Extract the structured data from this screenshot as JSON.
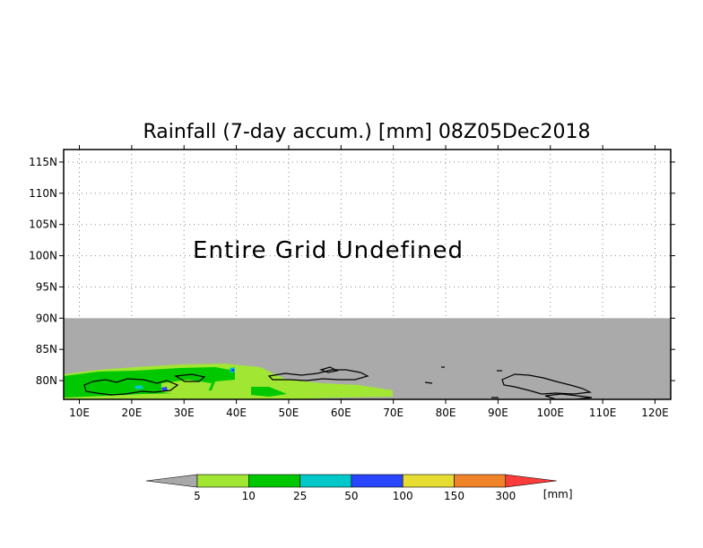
{
  "title": "Rainfall (7-day accum.) [mm] 08Z05Dec2018",
  "message": "Entire Grid Undefined",
  "map": {
    "lon_range": [
      7,
      123
    ],
    "lat_range": [
      77,
      117
    ],
    "lon_ticks": [
      10,
      20,
      30,
      40,
      50,
      60,
      70,
      80,
      90,
      100,
      110,
      120
    ],
    "lon_tick_labels": [
      "10E",
      "20E",
      "30E",
      "40E",
      "50E",
      "60E",
      "70E",
      "80E",
      "90E",
      "100E",
      "110E",
      "120E"
    ],
    "lat_ticks": [
      80,
      85,
      90,
      95,
      100,
      105,
      110,
      115
    ],
    "lat_tick_labels": [
      "80N",
      "85N",
      "90N",
      "95N",
      "100N",
      "105N",
      "110N",
      "115N"
    ],
    "undefined_region": {
      "lat_max": 90,
      "color": "#aaaaaa"
    },
    "grid": "dotted"
  },
  "legend": {
    "unit_label": "[mm]",
    "thresholds": [
      "5",
      "10",
      "25",
      "50",
      "100",
      "150",
      "300"
    ],
    "colors": [
      "#a9a9a9",
      "#a0e632",
      "#00c800",
      "#00c8c8",
      "#2846ff",
      "#e6dc32",
      "#f08228",
      "#fa3c3c"
    ]
  }
}
